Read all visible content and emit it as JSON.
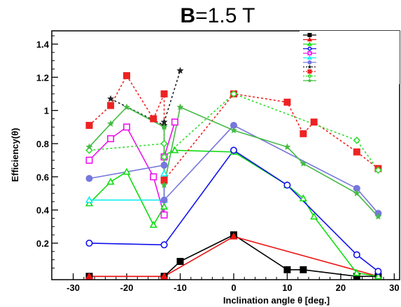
{
  "chart_data": {
    "type": "line",
    "title": "B=1.5 T",
    "title_parts": {
      "bold": "B",
      "rest": "=1.5 T"
    },
    "xlabel": "Inclination angle θ [deg.]",
    "ylabel": "Efficiency(θ)",
    "xlim": [
      -34,
      31
    ],
    "ylim": [
      -0.02,
      1.48
    ],
    "xticks": [
      -30,
      -20,
      -10,
      0,
      10,
      20,
      30
    ],
    "xtick_labels": [
      "-30",
      "-20",
      "-10",
      "0",
      "10",
      "20",
      "30"
    ],
    "yticks": [
      0.2,
      0.4,
      0.6,
      0.8,
      1,
      1.2,
      1.4
    ],
    "ytick_labels": [
      "0.2",
      "0.4",
      "0.6",
      "0.8",
      "1",
      "1.2",
      "1.4"
    ],
    "grid": false,
    "legend_position": "top-right",
    "series": [
      {
        "color": "#000000",
        "marker": "square-filled",
        "dash": false,
        "x": [
          -27,
          -13,
          -10,
          0,
          10,
          13,
          23,
          27
        ],
        "y": [
          0,
          0,
          0.09,
          0.25,
          0.04,
          0.04,
          0,
          0
        ]
      },
      {
        "color": "#ee1111",
        "marker": "triangle-filled",
        "dash": false,
        "x": [
          -27,
          -13,
          0,
          27
        ],
        "y": [
          0,
          0,
          0.24,
          0
        ]
      },
      {
        "color": "#11dd11",
        "marker": "triangle-open",
        "dash": false,
        "x": [
          -27,
          -23,
          -20,
          -15,
          -13,
          -13,
          -11,
          0,
          10,
          13,
          15,
          23,
          27
        ],
        "y": [
          0.44,
          0.57,
          0.63,
          0.31,
          0.42,
          0.73,
          0.76,
          0.75,
          0.55,
          0.47,
          0.36,
          0.02,
          0
        ]
      },
      {
        "color": "#1111ee",
        "marker": "circle-open",
        "dash": false,
        "x": [
          -27,
          -13,
          0,
          10,
          23,
          27
        ],
        "y": [
          0.2,
          0.19,
          0.76,
          0.55,
          0.13,
          0.03
        ]
      },
      {
        "color": "#ee11ee",
        "marker": "square-open",
        "dash": false,
        "x": [
          -27,
          -23,
          -20,
          -15,
          -13,
          -13,
          -11
        ],
        "y": [
          0.7,
          0.83,
          0.9,
          0.6,
          0.37,
          0.72,
          0.93
        ]
      },
      {
        "color": "#11eeee",
        "marker": "triangle-open",
        "dash": false,
        "x": [
          -27,
          -13,
          -13
        ],
        "y": [
          0.46,
          0.46,
          0.62
        ]
      },
      {
        "color": "#7777dd",
        "marker": "circle-filled",
        "dash": false,
        "x": [
          -27,
          -13,
          -13,
          0,
          23,
          27
        ],
        "y": [
          0.59,
          0.67,
          0.46,
          0.91,
          0.53,
          0.38
        ]
      },
      {
        "color": "#222222",
        "marker": "star",
        "dash": true,
        "x": [
          -23,
          -13,
          -13,
          -10
        ],
        "y": [
          1.07,
          0.91,
          0.93,
          1.24
        ]
      },
      {
        "color": "#ee2222",
        "marker": "square-filled",
        "dash": true,
        "x": [
          -27,
          -23,
          -20,
          -15,
          -13,
          -13,
          0,
          10,
          13,
          15,
          23,
          27
        ],
        "y": [
          0.91,
          1.03,
          1.21,
          0.95,
          1.1,
          0.58,
          1.1,
          1.05,
          0.86,
          0.93,
          0.75,
          0.65
        ]
      },
      {
        "color": "#33dd33",
        "marker": "diamond-open",
        "dash": true,
        "x": [
          -27,
          -13,
          -13,
          0,
          23,
          27
        ],
        "y": [
          0.76,
          0.8,
          0.72,
          1.1,
          0.82,
          0.64
        ]
      },
      {
        "color": "#44bb44",
        "marker": "star",
        "dash": false,
        "x": [
          -27,
          -23,
          -20,
          -13,
          -13,
          -10,
          0,
          10,
          13,
          23,
          27
        ],
        "y": [
          0.78,
          0.92,
          1.02,
          0.9,
          0.55,
          1.02,
          0.88,
          0.78,
          0.68,
          0.5,
          0.36
        ]
      }
    ]
  }
}
